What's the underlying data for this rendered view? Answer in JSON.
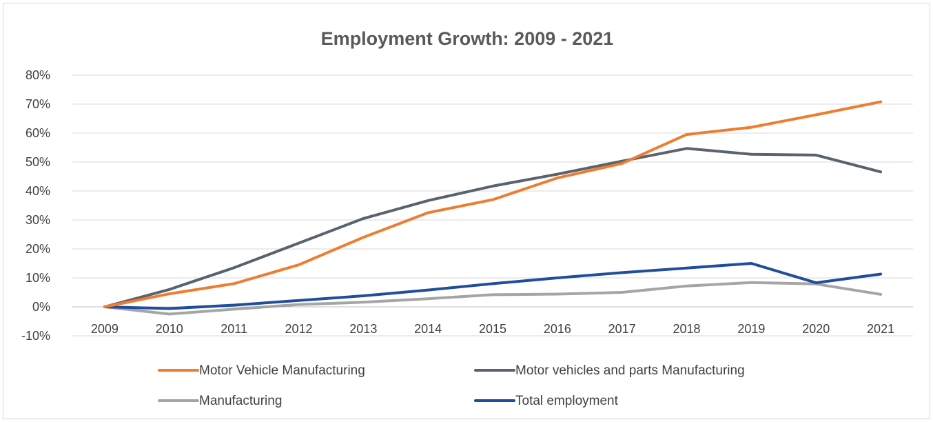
{
  "chart_data": {
    "type": "line",
    "title": "Employment Growth: 2009 - 2021",
    "xlabel": "",
    "ylabel": "",
    "x": [
      "2009",
      "2010",
      "2011",
      "2012",
      "2013",
      "2014",
      "2015",
      "2016",
      "2017",
      "2018",
      "2019",
      "2020",
      "2021"
    ],
    "ylim": [
      -10,
      80
    ],
    "yticks": [
      -10,
      0,
      10,
      20,
      30,
      40,
      50,
      60,
      70,
      80
    ],
    "ytick_labels": [
      "-10%",
      "0%",
      "10%",
      "20%",
      "30%",
      "40%",
      "50%",
      "60%",
      "70%",
      "80%"
    ],
    "grid": true,
    "legend_position": "bottom",
    "series": [
      {
        "name": "Motor Vehicle Manufacturing",
        "color": "#ed7d31",
        "values": [
          0,
          4.5,
          8,
          14.5,
          24,
          32.5,
          37,
          44.5,
          49.5,
          59.5,
          62,
          66.3,
          70.8
        ]
      },
      {
        "name": "Motor vehicles and parts Manufacturing",
        "color": "#5a636b",
        "values": [
          0,
          6,
          13.5,
          22,
          30.5,
          36.7,
          41.7,
          45.8,
          50.3,
          54.7,
          52.7,
          52.4,
          46.6
        ]
      },
      {
        "name": "Manufacturing",
        "color": "#a5a5a5",
        "values": [
          0,
          -2.5,
          -0.8,
          0.8,
          1.6,
          2.8,
          4.2,
          4.4,
          5,
          7.2,
          8.4,
          7.9,
          4.3
        ]
      },
      {
        "name": "Total employment",
        "color": "#1f4e9c",
        "values": [
          0,
          -0.6,
          0.6,
          2.2,
          3.8,
          5.8,
          8,
          10,
          11.8,
          13.4,
          15,
          8.3,
          11.3
        ]
      }
    ]
  }
}
